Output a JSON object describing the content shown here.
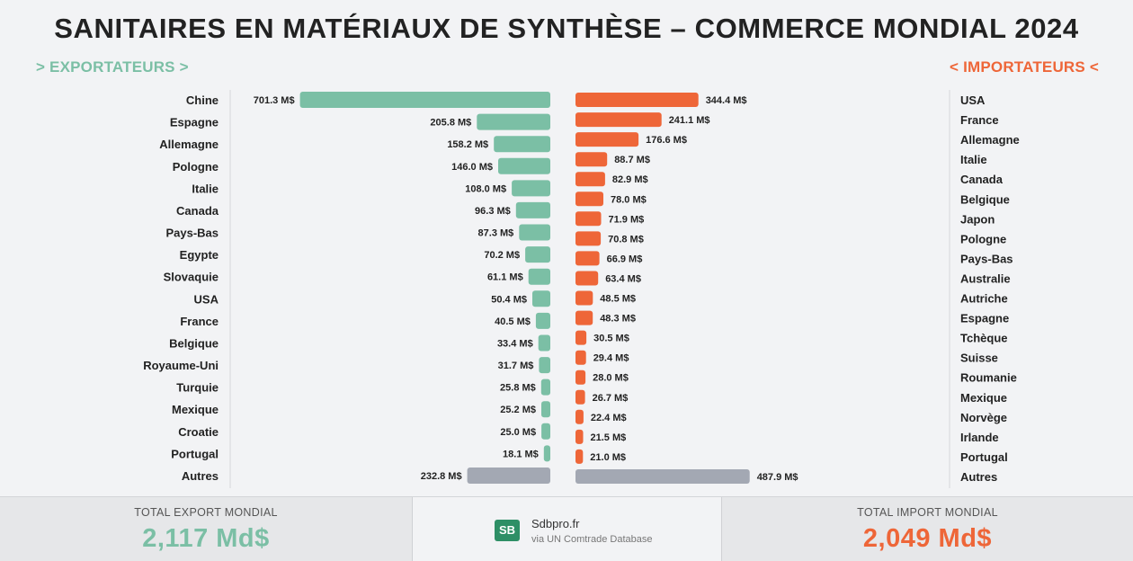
{
  "title": "SANITAIRES EN MATÉRIAUX DE SYNTHÈSE – COMMERCE MONDIAL 2024",
  "exporters_heading": "> EXPORTATEURS >",
  "importers_heading": "< IMPORTATEURS <",
  "colors": {
    "export": "#7bbfa5",
    "import": "#ee6638",
    "other": "#a3a8b3"
  },
  "chart_data": [
    {
      "type": "bar",
      "orientation": "horizontal",
      "side": "export",
      "categories": [
        "Chine",
        "Espagne",
        "Allemagne",
        "Pologne",
        "Italie",
        "Canada",
        "Pays-Bas",
        "Egypte",
        "Slovaquie",
        "USA",
        "France",
        "Belgique",
        "Royaume-Uni",
        "Turquie",
        "Mexique",
        "Croatie",
        "Portugal",
        "Autres"
      ],
      "values": [
        701.3,
        205.8,
        158.2,
        146.0,
        108.0,
        96.3,
        87.3,
        70.2,
        61.1,
        50.4,
        40.5,
        33.4,
        31.7,
        25.8,
        25.2,
        25.0,
        18.1,
        232.8
      ],
      "value_labels": [
        "701.3 M$",
        "205.8 M$",
        "158.2 M$",
        "146.0 M$",
        "108.0 M$",
        "96.3 M$",
        "87.3 M$",
        "70.2 M$",
        "61.1 M$",
        "50.4 M$",
        "40.5 M$",
        "33.4 M$",
        "31.7 M$",
        "25.8 M$",
        "25.2 M$",
        "25.0 M$",
        "18.1 M$",
        "232.8 M$"
      ],
      "unit": "M$"
    },
    {
      "type": "bar",
      "orientation": "horizontal",
      "side": "import",
      "categories": [
        "USA",
        "France",
        "Allemagne",
        "Italie",
        "Canada",
        "Belgique",
        "Japon",
        "Pologne",
        "Pays-Bas",
        "Australie",
        "Autriche",
        "Espagne",
        "Tchèque",
        "Suisse",
        "Roumanie",
        "Mexique",
        "Norvège",
        "Irlande",
        "Portugal",
        "Autres"
      ],
      "values": [
        344.4,
        241.1,
        176.6,
        88.7,
        82.9,
        78.0,
        71.9,
        70.8,
        66.9,
        63.4,
        48.5,
        48.3,
        30.5,
        29.4,
        28.0,
        26.7,
        22.4,
        21.5,
        21.0,
        487.9
      ],
      "value_labels": [
        "344.4 M$",
        "241.1 M$",
        "176.6 M$",
        "88.7 M$",
        "82.9 M$",
        "78.0 M$",
        "71.9 M$",
        "70.8 M$",
        "66.9 M$",
        "63.4 M$",
        "48.5 M$",
        "48.3 M$",
        "30.5 M$",
        "29.4 M$",
        "28.0 M$",
        "26.7 M$",
        "22.4 M$",
        "21.5 M$",
        "21.0 M$",
        "487.9 M$"
      ],
      "unit": "M$"
    }
  ],
  "footer": {
    "export_label": "TOTAL EXPORT MONDIAL",
    "export_total": "2,117 Md$",
    "import_label": "TOTAL IMPORT MONDIAL",
    "import_total": "2,049 Md$",
    "brand": "Sdbpro.fr",
    "source": "via UN Comtrade Database",
    "logo_text": "SB"
  }
}
